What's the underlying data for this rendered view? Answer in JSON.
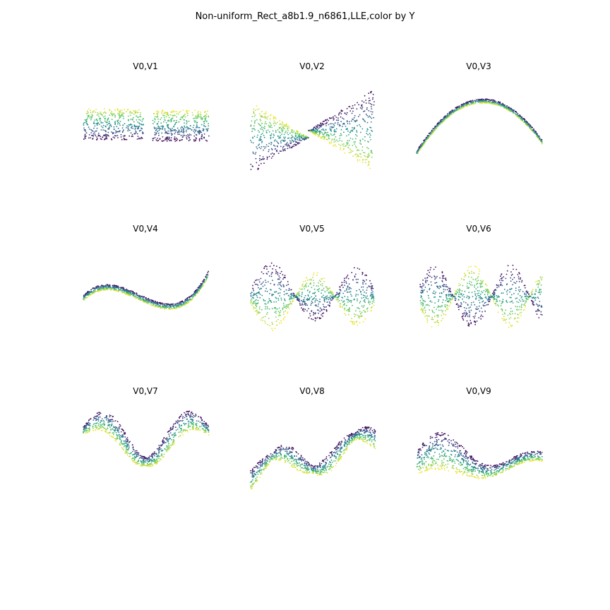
{
  "figure": {
    "title": "Non-uniform_Rect_a8b1.9_n6861,LLE,color by Y"
  },
  "colormap": {
    "name": "viridis",
    "stops": [
      "#440154",
      "#3b528b",
      "#21918c",
      "#5ec962",
      "#fde725"
    ]
  },
  "chart_data": [
    {
      "type": "scatter",
      "title": "V0,V1",
      "xlabel": "",
      "ylabel": "",
      "grid": false,
      "axes_visible": false,
      "color_by": "Y",
      "shape": "two-lobe-band",
      "points_shown": 6861
    },
    {
      "type": "scatter",
      "title": "V0,V2",
      "xlabel": "",
      "ylabel": "",
      "grid": false,
      "axes_visible": false,
      "color_by": "Y",
      "shape": "bowtie",
      "points_shown": 6861
    },
    {
      "type": "scatter",
      "title": "V0,V3",
      "xlabel": "",
      "ylabel": "",
      "grid": false,
      "axes_visible": false,
      "color_by": "Y",
      "shape": "parabola",
      "points_shown": 6861
    },
    {
      "type": "scatter",
      "title": "V0,V4",
      "xlabel": "",
      "ylabel": "",
      "grid": false,
      "axes_visible": false,
      "color_by": "Y",
      "shape": "cubic",
      "points_shown": 6861
    },
    {
      "type": "scatter",
      "title": "V0,V5",
      "xlabel": "",
      "ylabel": "",
      "grid": false,
      "axes_visible": false,
      "color_by": "Y",
      "shape": "twisted-ribbon",
      "points_shown": 6861
    },
    {
      "type": "scatter",
      "title": "V0,V6",
      "xlabel": "",
      "ylabel": "",
      "grid": false,
      "axes_visible": false,
      "color_by": "Y",
      "shape": "twisted-ribbon",
      "points_shown": 6861
    },
    {
      "type": "scatter",
      "title": "V0,V7",
      "xlabel": "",
      "ylabel": "",
      "grid": false,
      "axes_visible": false,
      "color_by": "Y",
      "shape": "quartic-wave",
      "points_shown": 6861
    },
    {
      "type": "scatter",
      "title": "V0,V8",
      "xlabel": "",
      "ylabel": "",
      "grid": false,
      "axes_visible": false,
      "color_by": "Y",
      "shape": "oscillating-wave",
      "points_shown": 6861
    },
    {
      "type": "scatter",
      "title": "V0,V9",
      "xlabel": "",
      "ylabel": "",
      "grid": false,
      "axes_visible": false,
      "color_by": "Y",
      "shape": "damped-wave",
      "points_shown": 6861
    }
  ]
}
